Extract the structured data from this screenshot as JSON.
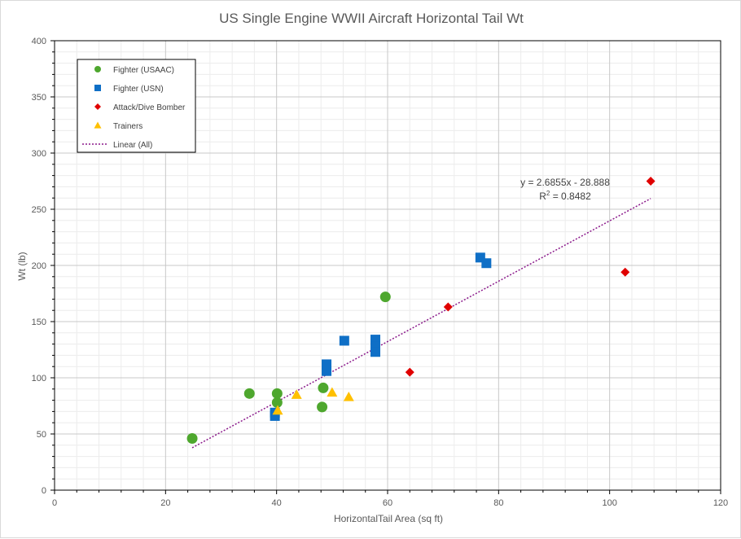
{
  "chart_data": {
    "type": "scatter",
    "title": "US Single Engine WWII Aircraft Horizontal Tail Wt",
    "xlabel": "HorizontalTail Area (sq ft)",
    "ylabel": "Wt (lb)",
    "xlim": [
      0,
      120
    ],
    "ylim": [
      0,
      400
    ],
    "x_ticks": [
      0,
      20,
      40,
      60,
      80,
      100,
      120
    ],
    "y_ticks": [
      0,
      50,
      100,
      150,
      200,
      250,
      300,
      350,
      400
    ],
    "grid": "major and minor",
    "legend_position": "top-left",
    "series": [
      {
        "name": "Fighter (USAAC)",
        "marker": "circle",
        "color": "#4ea72e",
        "points": [
          [
            24.8,
            46
          ],
          [
            35.1,
            86
          ],
          [
            40.1,
            86
          ],
          [
            40.1,
            78
          ],
          [
            48.4,
            91
          ],
          [
            48.2,
            74
          ],
          [
            59.6,
            172
          ]
        ]
      },
      {
        "name": "Fighter (USN)",
        "marker": "square",
        "color": "#0f6fc6",
        "points": [
          [
            39.7,
            69
          ],
          [
            39.7,
            66
          ],
          [
            49.0,
            112
          ],
          [
            49.0,
            106
          ],
          [
            52.2,
            133
          ],
          [
            57.8,
            134
          ],
          [
            57.8,
            128
          ],
          [
            57.8,
            123
          ],
          [
            76.7,
            207
          ],
          [
            77.8,
            202
          ]
        ]
      },
      {
        "name": "Attack/Dive Bomber",
        "marker": "diamond",
        "color": "#e00000",
        "points": [
          [
            64.0,
            105
          ],
          [
            70.9,
            163
          ],
          [
            102.8,
            194
          ],
          [
            107.4,
            275
          ]
        ]
      },
      {
        "name": "Trainers",
        "marker": "triangle",
        "color": "#ffc000",
        "points": [
          [
            40.2,
            71
          ],
          [
            43.6,
            85
          ],
          [
            50.0,
            87
          ],
          [
            53.0,
            83
          ]
        ]
      }
    ],
    "trendline": {
      "name": "Linear (All)",
      "color": "#8b1a8b",
      "slope": 2.6855,
      "intercept": -28.888,
      "x_range": [
        24.8,
        107.4
      ],
      "equation_label": "y = 2.6855x - 28.888",
      "r2_prefix": "R",
      "r2_sup": "2",
      "r2_suffix": " = 0.8482"
    }
  }
}
